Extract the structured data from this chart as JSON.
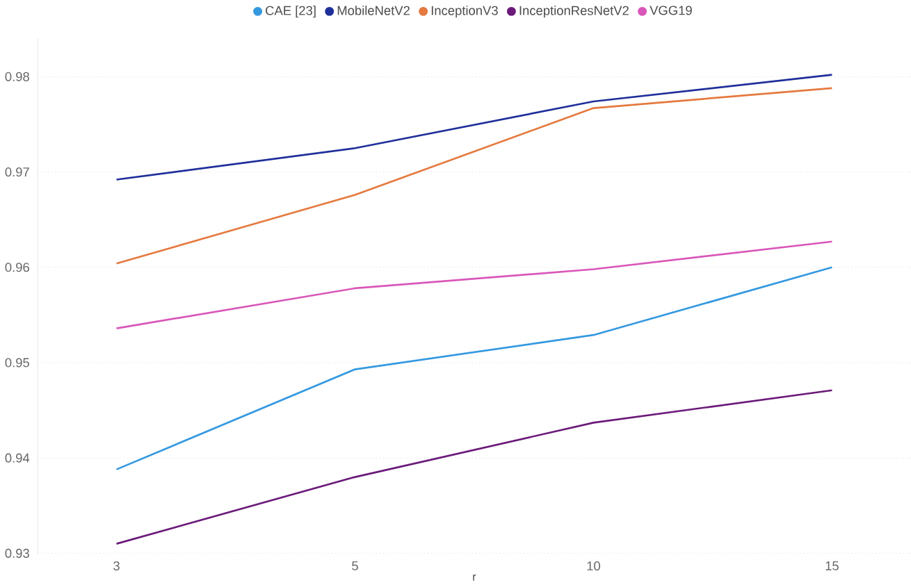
{
  "chart_data": {
    "type": "line",
    "xlabel": "r",
    "categories": [
      "3",
      "5",
      "10",
      "15"
    ],
    "series": [
      {
        "name": "CAE [23]",
        "color": "#3599e0",
        "values": [
          0.9388,
          0.9493,
          0.9529,
          0.96
        ]
      },
      {
        "name": "MobileNetV2",
        "color": "#1f2f9a",
        "values": [
          0.9692,
          0.9725,
          0.9774,
          0.9802
        ]
      },
      {
        "name": "InceptionV3",
        "color": "#e5793f",
        "values": [
          0.9604,
          0.9676,
          0.9767,
          0.9788
        ]
      },
      {
        "name": "InceptionResNetV2",
        "color": "#6b1a7a",
        "values": [
          0.931,
          0.938,
          0.9437,
          0.9471
        ]
      },
      {
        "name": "VGG19",
        "color": "#d957b9",
        "values": [
          0.9536,
          0.9578,
          0.9598,
          0.9627
        ]
      }
    ],
    "ylim": [
      0.93,
      0.984
    ],
    "yticks": [
      0.93,
      0.94,
      0.95,
      0.96,
      0.97,
      0.98
    ],
    "grid": "y",
    "legend": "top",
    "marker": "none",
    "line_style": "solid"
  }
}
